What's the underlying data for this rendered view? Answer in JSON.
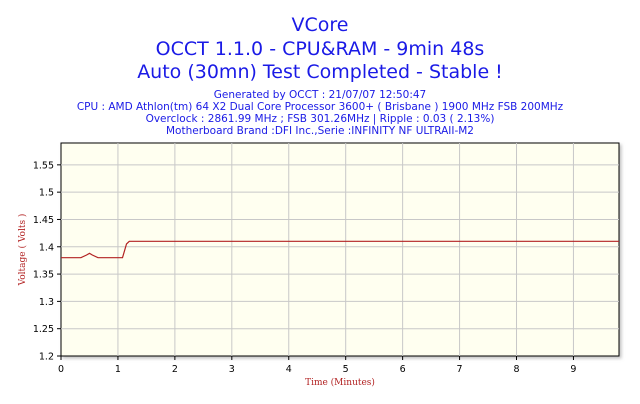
{
  "chart_data": {
    "type": "line",
    "title": "VCore",
    "subtitle_lines": [
      "OCCT 1.1.0 - CPU&RAM - 9min 48s",
      "Auto (30mn) Test Completed - Stable !"
    ],
    "info_lines": [
      "Generated by OCCT : 21/07/07 12:50:47",
      "CPU : AMD Athlon(tm) 64 X2 Dual Core Processor 3600+ ( Brisbane ) 1900 MHz FSB 200MHz",
      "Overclock : 2861.99 MHz ; FSB 301.26MHz | Ripple : 0.03 ( 2.13%)",
      "Motherboard Brand :DFI Inc.,Serie :INFINITY NF ULTRAII-M2"
    ],
    "xlabel": "Time (Minutes)",
    "ylabel": "Voltage ( Volts )",
    "xlim": [
      0,
      9.8
    ],
    "ylim": [
      1.2,
      1.59
    ],
    "xticks": [
      0,
      1,
      2,
      3,
      4,
      5,
      6,
      7,
      8,
      9
    ],
    "yticks": [
      1.2,
      1.25,
      1.3,
      1.35,
      1.4,
      1.45,
      1.5,
      1.55
    ],
    "ytick_labels": [
      "1.2",
      "1.25",
      "1.3",
      "1.35",
      "1.4",
      "1.45",
      "1.5",
      "1.55"
    ],
    "grid": true,
    "series": [
      {
        "color": "#b22222",
        "x": [
          0,
          0.35,
          0.45,
          0.5,
          0.55,
          0.65,
          1.0,
          1.08,
          1.15,
          1.2,
          9.8
        ],
        "y": [
          1.38,
          1.38,
          1.385,
          1.388,
          1.385,
          1.38,
          1.38,
          1.38,
          1.405,
          1.41,
          1.41
        ]
      }
    ],
    "colors": {
      "title": "#1a1ae6",
      "plot_bg": "#fffff0",
      "grid": "#c8c8c8",
      "axis_label": "#b22222",
      "line": "#b22222"
    }
  }
}
